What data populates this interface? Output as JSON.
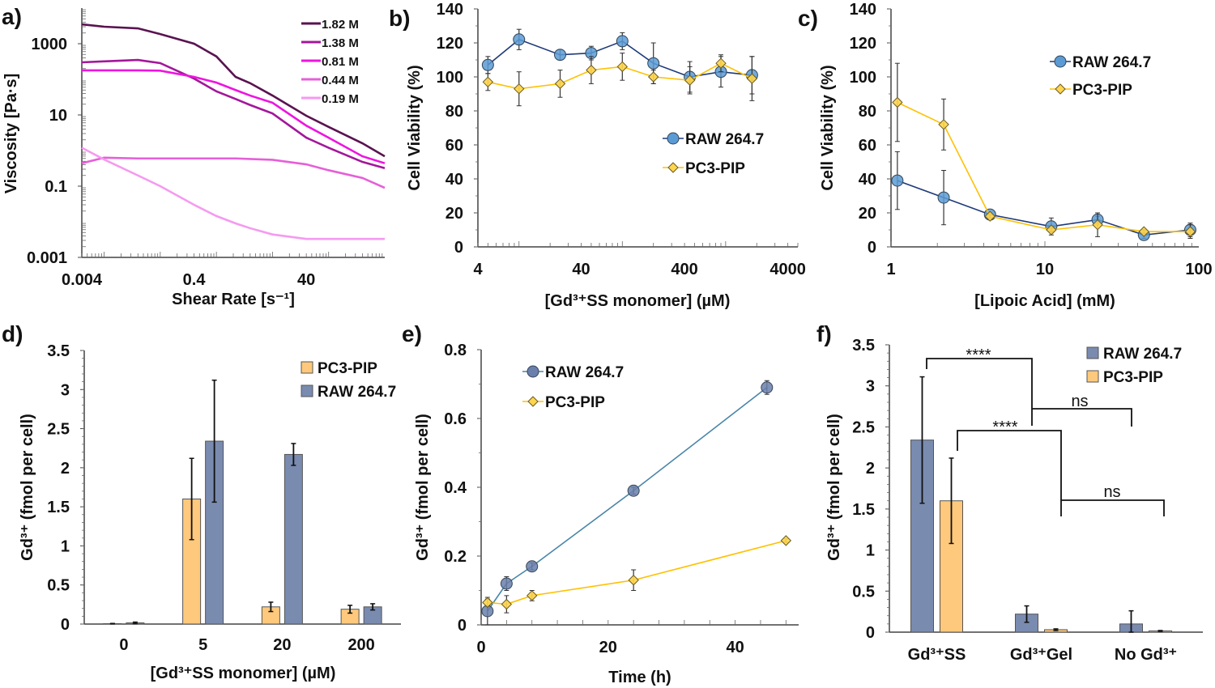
{
  "chart_data": [
    {
      "panel_label": "a)",
      "type": "line",
      "xlabel": "Shear Rate [s⁻¹]",
      "ylabel": "Viscosity [Pa·s]",
      "x_scale": "log",
      "y_scale": "log",
      "xlim": [
        0.004,
        1000
      ],
      "ylim": [
        0.001,
        10000
      ],
      "x_ticks": [
        "0.004",
        "0.4",
        "40"
      ],
      "y_ticks": [
        "0.001",
        "0.1",
        "10",
        "1000"
      ],
      "legend_position": "top-right",
      "x": [
        0.004,
        0.01,
        0.04,
        0.1,
        0.4,
        1,
        2.2,
        4,
        10,
        40,
        100,
        400,
        1000
      ],
      "series": [
        {
          "name": "1.82 M",
          "color": "#5a1350",
          "values": [
            3500,
            3000,
            2700,
            1860,
            1000,
            440,
            117,
            78,
            35,
            9.5,
            4.6,
            1.6,
            0.69
          ]
        },
        {
          "name": "1.38 M",
          "color": "#a3179b",
          "values": [
            300,
            320,
            350,
            285,
            105,
            46,
            28,
            19,
            11,
            2.3,
            1.2,
            0.48,
            0.32
          ]
        },
        {
          "name": "0.81 M",
          "color": "#ee14e0",
          "values": [
            178,
            178,
            178,
            175,
            117,
            81,
            50,
            35,
            22,
            5,
            2.3,
            0.69,
            0.44
          ]
        },
        {
          "name": "0.44 M",
          "color": "#e65fd8",
          "values": [
            0.44,
            0.63,
            0.6,
            0.6,
            0.6,
            0.6,
            0.6,
            0.58,
            0.55,
            0.41,
            0.28,
            0.17,
            0.09
          ]
        },
        {
          "name": "0.19 M",
          "color": "#f59af0",
          "values": [
            1.2,
            0.56,
            0.2,
            0.1,
            0.03,
            0.0145,
            0.009,
            0.0066,
            0.0044,
            0.0033,
            0.0033,
            0.0033,
            0.0033
          ]
        }
      ]
    },
    {
      "panel_label": "b)",
      "type": "line",
      "xlabel": "[Gd³⁺SS monomer] (µM)",
      "ylabel": "Cell Viability (%)",
      "x_scale": "log",
      "y_scale": "linear",
      "xlim": [
        4,
        5000
      ],
      "ylim": [
        0,
        140
      ],
      "x_ticks": [
        "4",
        "40",
        "400",
        "4000"
      ],
      "y_ticks": [
        "0",
        "20",
        "40",
        "60",
        "80",
        "100",
        "120",
        "140"
      ],
      "legend_position": "center-right",
      "x": [
        5,
        10,
        25,
        50,
        100,
        200,
        450,
        900,
        1800
      ],
      "series": [
        {
          "name": "RAW 264.7",
          "marker": "circle",
          "line_color": "#1f3a7a",
          "marker_color": "#5b9bd5",
          "values": [
            107,
            122,
            113,
            114,
            121,
            108,
            100,
            103,
            101
          ],
          "errors": [
            5,
            6,
            3,
            4,
            5,
            12,
            9,
            9,
            11
          ]
        },
        {
          "name": "PC3-PIP",
          "marker": "diamond",
          "line_color": "#ffc000",
          "marker_color": "#ffd54f",
          "values": [
            97,
            93,
            96,
            104,
            106,
            100,
            98,
            108,
            99
          ],
          "errors": [
            5,
            10,
            8,
            8,
            8,
            4,
            8,
            5,
            13
          ]
        }
      ]
    },
    {
      "panel_label": "c)",
      "type": "line",
      "xlabel": "[Lipoic Acid] (mM)",
      "ylabel": "Cell Viability (%)",
      "x_scale": "log",
      "y_scale": "linear",
      "xlim": [
        1,
        100
      ],
      "ylim": [
        0,
        140
      ],
      "x_ticks": [
        "1",
        "10",
        "100"
      ],
      "y_ticks": [
        "0",
        "20",
        "40",
        "60",
        "80",
        "100",
        "120",
        "140"
      ],
      "legend_position": "top-right",
      "x": [
        1.1,
        2.2,
        4.4,
        11,
        22,
        44,
        88
      ],
      "series": [
        {
          "name": "RAW 264.7",
          "marker": "circle",
          "line_color": "#1f3a7a",
          "marker_color": "#5b9bd5",
          "values": [
            39,
            29,
            19,
            12,
            16,
            7,
            10
          ],
          "errors": [
            17,
            16,
            1,
            5,
            2,
            2,
            4
          ]
        },
        {
          "name": "PC3-PIP",
          "marker": "diamond",
          "line_color": "#ffc000",
          "marker_color": "#ffd54f",
          "values": [
            85,
            72,
            18,
            10,
            13,
            9,
            9
          ],
          "errors": [
            23,
            15,
            1,
            1,
            7,
            1,
            4
          ]
        }
      ]
    },
    {
      "panel_label": "d)",
      "type": "bar",
      "xlabel": "[Gd³⁺SS monomer] (µM)",
      "ylabel": "Gd³⁺ (fmol per cell)",
      "ylim": [
        0,
        3.5
      ],
      "y_ticks": [
        "0",
        "0.5",
        "1",
        "1.5",
        "2",
        "2.5",
        "3",
        "3.5"
      ],
      "legend_position": "top-right",
      "categories": [
        "0",
        "5",
        "20",
        "200"
      ],
      "series": [
        {
          "name": "PC3-PIP",
          "color": "#fec97c",
          "values": [
            0.005,
            1.6,
            0.22,
            0.19
          ],
          "errors": [
            0.003,
            0.52,
            0.06,
            0.05
          ]
        },
        {
          "name": "RAW 264.7",
          "color": "#7a8bb0",
          "values": [
            0.015,
            2.34,
            2.17,
            0.22
          ],
          "errors": [
            0.01,
            0.78,
            0.14,
            0.04
          ]
        }
      ]
    },
    {
      "panel_label": "e)",
      "type": "line",
      "xlabel": "Time (h)",
      "ylabel": "Gd³⁺ (fmol per cell)",
      "x_scale": "linear",
      "y_scale": "linear",
      "xlim": [
        0,
        50
      ],
      "ylim": [
        0,
        0.8
      ],
      "x_ticks": [
        "0",
        "20",
        "40"
      ],
      "y_ticks": [
        "0",
        "0.2",
        "0.4",
        "0.6",
        "0.8"
      ],
      "legend_position": "top-left",
      "series": [
        {
          "name": "RAW 264.7",
          "marker": "circle",
          "line_color": "#4a86a8",
          "marker_color": "#6a7fab",
          "x": [
            1,
            4,
            8,
            24,
            45
          ],
          "values": [
            0.04,
            0.12,
            0.17,
            0.39,
            0.69
          ],
          "errors": [
            0.04,
            0.02,
            0.01,
            0.01,
            0.02
          ]
        },
        {
          "name": "PC3-PIP",
          "marker": "diamond",
          "line_color": "#ffc000",
          "marker_color": "#ffd54f",
          "x": [
            1,
            4,
            8,
            24,
            48
          ],
          "values": [
            0.065,
            0.06,
            0.085,
            0.13,
            0.245
          ],
          "errors": [
            0.01,
            0.025,
            0.015,
            0.03,
            0.005
          ]
        }
      ]
    },
    {
      "panel_label": "f)",
      "type": "bar",
      "xlabel": "",
      "ylabel": "Gd³⁺ (fmol per cell)",
      "ylim": [
        0,
        3.5
      ],
      "y_ticks": [
        "0",
        "0.5",
        "1",
        "1.5",
        "2",
        "2.5",
        "3",
        "3.5"
      ],
      "legend_position": "top-right",
      "categories": [
        "Gd³⁺SS",
        "Gd³⁺Gel",
        "No Gd³⁺"
      ],
      "series": [
        {
          "name": "RAW 264.7",
          "color": "#7a8bb0",
          "values": [
            2.34,
            0.22,
            0.1
          ],
          "errors": [
            0.77,
            0.1,
            0.16
          ]
        },
        {
          "name": "PC3-PIP",
          "color": "#fec97c",
          "values": [
            1.6,
            0.03,
            0.015
          ],
          "errors": [
            0.52,
            0.01,
            0.005
          ]
        }
      ],
      "annotations": [
        "****",
        "ns",
        "****",
        "ns"
      ]
    }
  ]
}
